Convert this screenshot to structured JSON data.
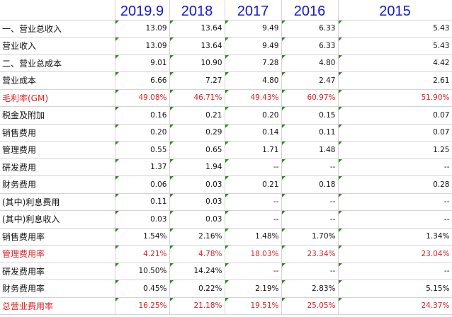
{
  "header": {
    "label": "",
    "years": [
      "2019.9",
      "2018",
      "2017",
      "2016",
      "2015"
    ]
  },
  "rows": [
    {
      "label": "一、营业总收入",
      "values": [
        "13.09",
        "13.64",
        "9.49",
        "6.33",
        "5.43"
      ],
      "highlight": false
    },
    {
      "label": "营业收入",
      "values": [
        "13.09",
        "13.64",
        "9.49",
        "6.33",
        "5.43"
      ],
      "highlight": false
    },
    {
      "label": "二、营业总成本",
      "values": [
        "9.01",
        "10.90",
        "7.28",
        "4.80",
        "4.42"
      ],
      "highlight": false
    },
    {
      "label": "营业成本",
      "values": [
        "6.66",
        "7.27",
        "4.80",
        "2.47",
        "2.61"
      ],
      "highlight": false
    },
    {
      "label": "毛利率(GM)",
      "values": [
        "49.08%",
        "46.71%",
        "49.43%",
        "60.97%",
        "51.90%"
      ],
      "highlight": true
    },
    {
      "label": "税金及附加",
      "values": [
        "0.16",
        "0.21",
        "0.20",
        "0.15",
        "0.07"
      ],
      "highlight": false
    },
    {
      "label": "销售费用",
      "values": [
        "0.20",
        "0.29",
        "0.14",
        "0.11",
        "0.07"
      ],
      "highlight": false
    },
    {
      "label": "管理费用",
      "values": [
        "0.55",
        "0.65",
        "1.71",
        "1.48",
        "1.25"
      ],
      "highlight": false
    },
    {
      "label": "研发费用",
      "values": [
        "1.37",
        "1.94",
        "--",
        "--",
        "--"
      ],
      "highlight": false
    },
    {
      "label": "财务费用",
      "values": [
        "0.06",
        "0.03",
        "0.21",
        "0.18",
        "0.28"
      ],
      "highlight": false
    },
    {
      "label": "(其中)利息费用",
      "values": [
        "0.11",
        "0.03",
        "--",
        "--",
        "--"
      ],
      "highlight": false
    },
    {
      "label": "(其中)利息收入",
      "values": [
        "0.03",
        "0.03",
        "--",
        "--",
        "--"
      ],
      "highlight": false
    },
    {
      "label": "销售费用率",
      "values": [
        "1.54%",
        "2.16%",
        "1.48%",
        "1.70%",
        "1.34%"
      ],
      "highlight": false
    },
    {
      "label": "管理费用率",
      "values": [
        "4.21%",
        "4.78%",
        "18.03%",
        "23.34%",
        "23.04%"
      ],
      "highlight": true
    },
    {
      "label": "研发费用率",
      "values": [
        "10.50%",
        "14.24%",
        "--",
        "--",
        "--"
      ],
      "highlight": false
    },
    {
      "label": "财务费用率",
      "values": [
        "0.45%",
        "0.22%",
        "2.19%",
        "2.83%",
        "5.15%"
      ],
      "highlight": false
    },
    {
      "label": "总营业费用率",
      "values": [
        "16.25%",
        "21.18%",
        "19.51%",
        "25.05%",
        "24.37%"
      ],
      "highlight": true
    }
  ],
  "colors": {
    "header_text": "#1515d6",
    "highlight_text": "#e02020",
    "indicator": "#2e8b20",
    "grid": "#d4d4d4"
  }
}
